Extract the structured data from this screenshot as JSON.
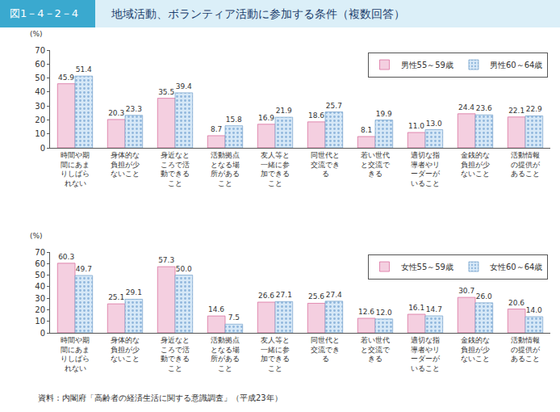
{
  "header": {
    "label": "図1－4－2－4",
    "title": "地域活動、ボランティア活動に参加する条件（複数回答）"
  },
  "source": "資料：内閣府「高齢者の経済生活に関する意識調査」（平成23年）",
  "chart_data": [
    {
      "type": "bar",
      "ylabel": "(%)",
      "categories": [
        "時間や期間にあまりしばられない",
        "身体的な負担が少ないこと",
        "身近なところで活動できること",
        "活動拠点となる場所があること",
        "友人等と一緒に参加できること",
        "同世代と交流できる",
        "若い世代と交流できる",
        "適切な指導者やリーダーがいること",
        "金銭的な負担が少ないこと",
        "活動情報の提供があること"
      ],
      "series": [
        {
          "name": "男性55～59歳",
          "color": "#f4cfe0",
          "marker": "solid",
          "values": [
            45.9,
            20.3,
            35.5,
            8.7,
            16.9,
            18.6,
            8.1,
            11.0,
            24.4,
            22.1
          ],
          "value_labels": [
            "45.9",
            "20.3",
            "35.5",
            "8.7",
            "16.9",
            "18.6",
            "8.1",
            "11.0",
            "24.4",
            "22.1"
          ]
        },
        {
          "name": "男性60～64歳",
          "color": "#d6e8f7",
          "marker": "dotted",
          "values": [
            51.4,
            23.3,
            39.4,
            15.8,
            21.9,
            25.7,
            19.9,
            13.0,
            23.6,
            22.9
          ],
          "value_labels": [
            "51.4",
            "23.3",
            "39.4",
            "15.8",
            "21.9",
            "25.7",
            "19.9",
            "13.0",
            "23.6",
            "22.9"
          ]
        }
      ],
      "ylim": [
        0,
        70
      ],
      "yticks": [
        0,
        10,
        20,
        30,
        40,
        50,
        60,
        70
      ],
      "grid": false,
      "legend": "top-right",
      "data_labels": true
    },
    {
      "type": "bar",
      "ylabel": "(%)",
      "categories": [
        "時間や期間にあまりしばられない",
        "身体的な負担が少ないこと",
        "身近なところで活動できること",
        "活動拠点となる場所があること",
        "友人等と一緒に参加できること",
        "同世代と交流できる",
        "若い世代と交流できる",
        "適切な指導者やリーダーがいること",
        "金銭的な負担が少ないこと",
        "活動情報の提供があること"
      ],
      "series": [
        {
          "name": "女性55～59歳",
          "color": "#f4cfe0",
          "marker": "solid",
          "values": [
            60.3,
            25.1,
            57.3,
            14.6,
            26.6,
            25.6,
            12.6,
            16.1,
            30.7,
            20.6
          ],
          "value_labels": [
            "60.3",
            "25.1",
            "57.3",
            "14.6",
            "26.6",
            "25.6",
            "12.6",
            "16.1",
            "30.7",
            "20.6"
          ]
        },
        {
          "name": "女性60～64歳",
          "color": "#d6e8f7",
          "marker": "dotted",
          "values": [
            49.7,
            29.1,
            50.0,
            7.5,
            27.1,
            27.4,
            12.0,
            14.7,
            26.0,
            14.0
          ],
          "value_labels": [
            "49.7",
            "29.1",
            "50.0",
            "7.5",
            "27.1",
            "27.4",
            "12.0",
            "14.7",
            "26.0",
            "14.0"
          ]
        }
      ],
      "ylim": [
        0,
        70
      ],
      "yticks": [
        0,
        10,
        20,
        30,
        40,
        50,
        60,
        70
      ],
      "grid": false,
      "legend": "top-right",
      "data_labels": true
    }
  ]
}
